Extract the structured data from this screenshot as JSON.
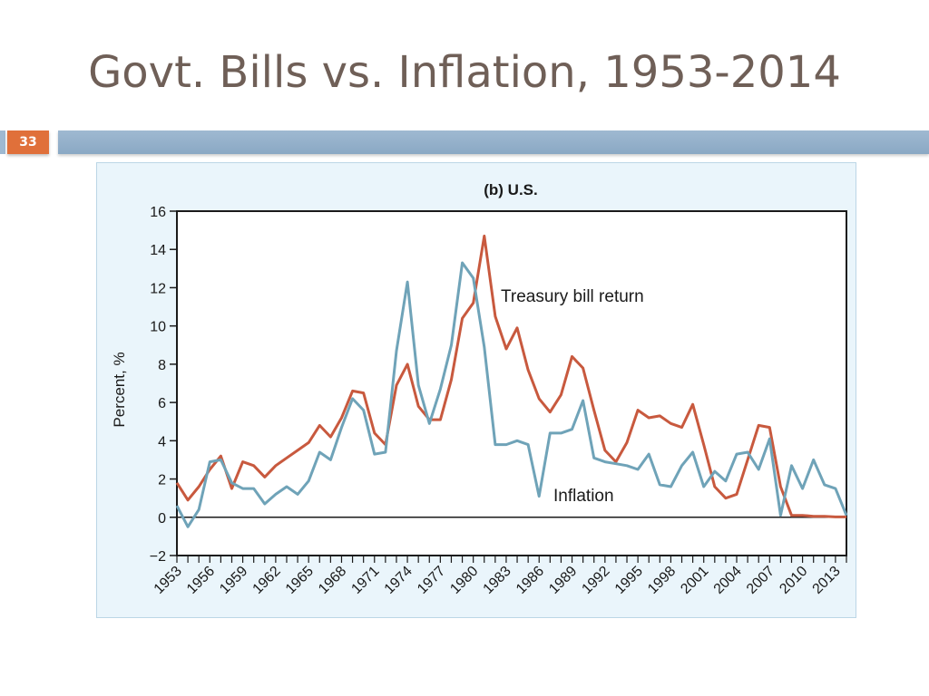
{
  "slide": {
    "title": "Govt. Bills vs. Inflation, 1953-2014",
    "number": "33"
  },
  "chart_data": {
    "type": "line",
    "title": "(b) U.S.",
    "xlabel": "",
    "ylabel": "Percent, %",
    "ylim": [
      -2,
      16
    ],
    "xlim": [
      1953,
      2014
    ],
    "yticks": [
      -2,
      0,
      2,
      4,
      6,
      8,
      10,
      12,
      14,
      16
    ],
    "ytick_labels": [
      "−2",
      "0",
      "2",
      "4",
      "6",
      "8",
      "10",
      "12",
      "14",
      "16"
    ],
    "xticks": [
      "1953",
      "1956",
      "1959",
      "1962",
      "1965",
      "1968",
      "1971",
      "1974",
      "1977",
      "1980",
      "1983",
      "1986",
      "1989",
      "1992",
      "1995",
      "1998",
      "2001",
      "2004",
      "2007",
      "2010",
      "2013"
    ],
    "grid": false,
    "legend": "none",
    "annotations": [
      "Treasury bill return",
      "Inflation"
    ],
    "x": [
      1953,
      1954,
      1955,
      1956,
      1957,
      1958,
      1959,
      1960,
      1961,
      1962,
      1963,
      1964,
      1965,
      1966,
      1967,
      1968,
      1969,
      1970,
      1971,
      1972,
      1973,
      1974,
      1975,
      1976,
      1977,
      1978,
      1979,
      1980,
      1981,
      1982,
      1983,
      1984,
      1985,
      1986,
      1987,
      1988,
      1989,
      1990,
      1991,
      1992,
      1993,
      1994,
      1995,
      1996,
      1997,
      1998,
      1999,
      2000,
      2001,
      2002,
      2003,
      2004,
      2005,
      2006,
      2007,
      2008,
      2009,
      2010,
      2011,
      2012,
      2013,
      2014
    ],
    "series": [
      {
        "name": "Treasury bill return",
        "color": "#c8593e",
        "values": [
          1.8,
          0.9,
          1.6,
          2.5,
          3.2,
          1.5,
          2.9,
          2.7,
          2.1,
          2.7,
          3.1,
          3.5,
          3.9,
          4.8,
          4.2,
          5.2,
          6.6,
          6.5,
          4.4,
          3.8,
          6.9,
          8.0,
          5.8,
          5.1,
          5.1,
          7.2,
          10.4,
          11.2,
          14.7,
          10.5,
          8.8,
          9.9,
          7.7,
          6.2,
          5.5,
          6.4,
          8.4,
          7.8,
          5.6,
          3.5,
          2.9,
          3.9,
          5.6,
          5.2,
          5.3,
          4.9,
          4.7,
          5.9,
          3.8,
          1.6,
          1.0,
          1.2,
          3.0,
          4.8,
          4.7,
          1.6,
          0.1,
          0.1,
          0.05,
          0.05,
          0.02,
          0.02
        ]
      },
      {
        "name": "Inflation",
        "color": "#6fa3b8",
        "values": [
          0.6,
          -0.5,
          0.4,
          2.9,
          3.0,
          1.8,
          1.5,
          1.5,
          0.7,
          1.2,
          1.6,
          1.2,
          1.9,
          3.4,
          3.0,
          4.7,
          6.2,
          5.6,
          3.3,
          3.4,
          8.7,
          12.3,
          6.9,
          4.9,
          6.7,
          9.0,
          13.3,
          12.5,
          8.9,
          3.8,
          3.8,
          4.0,
          3.8,
          1.1,
          4.4,
          4.4,
          4.6,
          6.1,
          3.1,
          2.9,
          2.8,
          2.7,
          2.5,
          3.3,
          1.7,
          1.6,
          2.7,
          3.4,
          1.6,
          2.4,
          1.9,
          3.3,
          3.4,
          2.5,
          4.1,
          0.1,
          2.7,
          1.5,
          3.0,
          1.7,
          1.5,
          0.1
        ]
      }
    ]
  }
}
